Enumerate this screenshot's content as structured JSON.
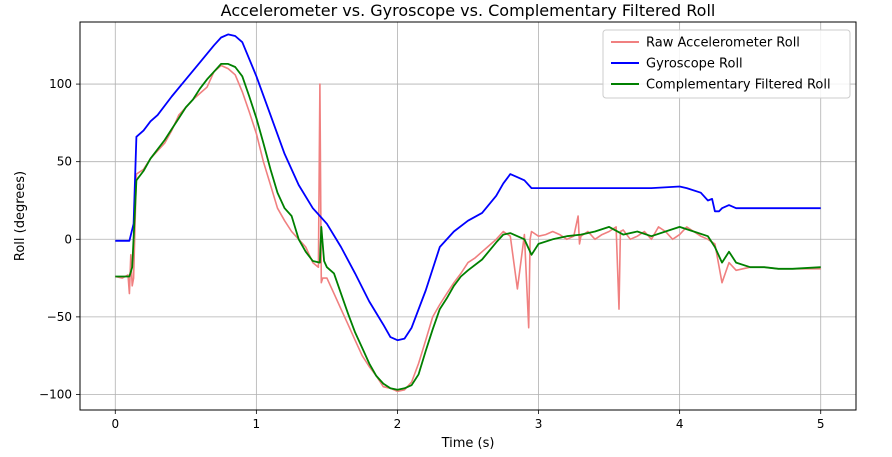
{
  "chart_data": {
    "type": "line",
    "title": "Accelerometer vs. Gyroscope vs. Complementary Filtered Roll",
    "xlabel": "Time (s)",
    "ylabel": "Roll (degrees)",
    "xlim": [
      -0.25,
      5.25
    ],
    "ylim": [
      -110,
      140
    ],
    "xticks": [
      0,
      1,
      2,
      3,
      4,
      5
    ],
    "yticks": [
      -100,
      -50,
      0,
      50,
      100
    ],
    "grid": true,
    "legend_position": "top-right",
    "series": [
      {
        "name": "Raw Accelerometer Roll",
        "color": "#f08080",
        "x": [
          0,
          0.05,
          0.09,
          0.1,
          0.11,
          0.12,
          0.13,
          0.15,
          0.2,
          0.25,
          0.3,
          0.35,
          0.4,
          0.45,
          0.5,
          0.55,
          0.6,
          0.65,
          0.7,
          0.75,
          0.8,
          0.85,
          0.9,
          0.95,
          1.0,
          1.05,
          1.1,
          1.15,
          1.2,
          1.25,
          1.3,
          1.35,
          1.4,
          1.44,
          1.45,
          1.46,
          1.47,
          1.5,
          1.55,
          1.6,
          1.65,
          1.7,
          1.75,
          1.8,
          1.85,
          1.9,
          1.95,
          2.0,
          2.05,
          2.1,
          2.15,
          2.2,
          2.25,
          2.3,
          2.35,
          2.4,
          2.45,
          2.5,
          2.55,
          2.6,
          2.65,
          2.7,
          2.75,
          2.8,
          2.85,
          2.9,
          2.93,
          2.94,
          2.95,
          3.0,
          3.05,
          3.1,
          3.15,
          3.2,
          3.25,
          3.28,
          3.29,
          3.3,
          3.35,
          3.4,
          3.45,
          3.5,
          3.55,
          3.57,
          3.58,
          3.6,
          3.65,
          3.7,
          3.75,
          3.8,
          3.85,
          3.9,
          3.95,
          4.0,
          4.05,
          4.1,
          4.15,
          4.2,
          4.25,
          4.3,
          4.35,
          4.4,
          4.5,
          4.6,
          4.7,
          4.8,
          4.9,
          5.0
        ],
        "y": [
          -24,
          -25,
          -23,
          -35,
          -10,
          -30,
          -25,
          42,
          45,
          52,
          57,
          62,
          70,
          80,
          85,
          90,
          94,
          98,
          108,
          112,
          110,
          106,
          95,
          82,
          68,
          50,
          35,
          20,
          12,
          5,
          0,
          -5,
          -15,
          -18,
          100,
          -28,
          -25,
          -25,
          -35,
          -45,
          -55,
          -65,
          -75,
          -82,
          -88,
          -95,
          -96,
          -98,
          -97,
          -92,
          -80,
          -65,
          -50,
          -42,
          -35,
          -28,
          -22,
          -15,
          -12,
          -8,
          -4,
          0,
          5,
          2,
          -32,
          3,
          -57,
          0,
          5,
          2,
          3,
          5,
          3,
          0,
          2,
          15,
          -3,
          2,
          5,
          0,
          3,
          5,
          8,
          -45,
          5,
          6,
          0,
          2,
          5,
          0,
          8,
          5,
          0,
          3,
          8,
          5,
          2,
          0,
          -3,
          -28,
          -15,
          -20,
          -18,
          -18,
          -19,
          -19,
          -19,
          -19
        ]
      },
      {
        "name": "Gyroscope Roll",
        "color": "#0000ff",
        "x": [
          0,
          0.1,
          0.13,
          0.15,
          0.2,
          0.25,
          0.3,
          0.4,
          0.5,
          0.6,
          0.7,
          0.75,
          0.8,
          0.85,
          0.9,
          1.0,
          1.1,
          1.2,
          1.3,
          1.4,
          1.45,
          1.5,
          1.6,
          1.7,
          1.8,
          1.9,
          1.95,
          2.0,
          2.05,
          2.1,
          2.2,
          2.3,
          2.4,
          2.5,
          2.6,
          2.7,
          2.75,
          2.8,
          2.85,
          2.9,
          2.95,
          3.0,
          3.5,
          3.8,
          4.0,
          4.05,
          4.15,
          4.2,
          4.23,
          4.25,
          4.28,
          4.3,
          4.35,
          4.4,
          4.5,
          4.6,
          4.7,
          4.8,
          5.0
        ],
        "y": [
          -1,
          -1,
          10,
          66,
          70,
          76,
          80,
          92,
          103,
          114,
          125,
          130,
          132,
          131,
          127,
          105,
          80,
          55,
          35,
          20,
          15,
          10,
          -5,
          -22,
          -40,
          -55,
          -63,
          -65,
          -64,
          -57,
          -33,
          -5,
          5,
          12,
          17,
          28,
          36,
          42,
          40,
          38,
          33,
          33,
          33,
          33,
          34,
          33,
          30,
          25,
          26,
          18,
          18,
          20,
          22,
          20,
          20,
          20,
          20,
          20,
          20
        ]
      },
      {
        "name": "Complementary Filtered Roll",
        "color": "#008000",
        "x": [
          0,
          0.05,
          0.1,
          0.12,
          0.15,
          0.2,
          0.25,
          0.3,
          0.35,
          0.4,
          0.45,
          0.5,
          0.55,
          0.6,
          0.65,
          0.7,
          0.75,
          0.8,
          0.85,
          0.9,
          0.95,
          1.0,
          1.05,
          1.1,
          1.15,
          1.2,
          1.25,
          1.3,
          1.35,
          1.4,
          1.45,
          1.46,
          1.48,
          1.5,
          1.55,
          1.6,
          1.65,
          1.7,
          1.75,
          1.8,
          1.85,
          1.9,
          1.95,
          2.0,
          2.05,
          2.1,
          2.15,
          2.2,
          2.25,
          2.3,
          2.35,
          2.4,
          2.45,
          2.5,
          2.6,
          2.7,
          2.75,
          2.8,
          2.85,
          2.9,
          2.95,
          3.0,
          3.1,
          3.2,
          3.3,
          3.4,
          3.5,
          3.6,
          3.7,
          3.8,
          3.9,
          4.0,
          4.1,
          4.2,
          4.25,
          4.3,
          4.35,
          4.4,
          4.5,
          4.6,
          4.7,
          4.8,
          5.0
        ],
        "y": [
          -24,
          -24,
          -24,
          -18,
          38,
          44,
          52,
          58,
          64,
          71,
          78,
          85,
          90,
          97,
          103,
          108,
          113,
          113,
          111,
          105,
          92,
          78,
          62,
          45,
          30,
          20,
          15,
          0,
          -8,
          -14,
          -15,
          8,
          -14,
          -18,
          -22,
          -35,
          -48,
          -60,
          -70,
          -80,
          -88,
          -93,
          -96,
          -97,
          -96,
          -94,
          -87,
          -72,
          -58,
          -45,
          -38,
          -30,
          -24,
          -20,
          -13,
          -2,
          3,
          4,
          2,
          0,
          -10,
          -3,
          0,
          2,
          3,
          5,
          8,
          3,
          5,
          2,
          5,
          8,
          5,
          2,
          -5,
          -15,
          -8,
          -15,
          -18,
          -18,
          -19,
          -19,
          -18
        ]
      }
    ]
  }
}
